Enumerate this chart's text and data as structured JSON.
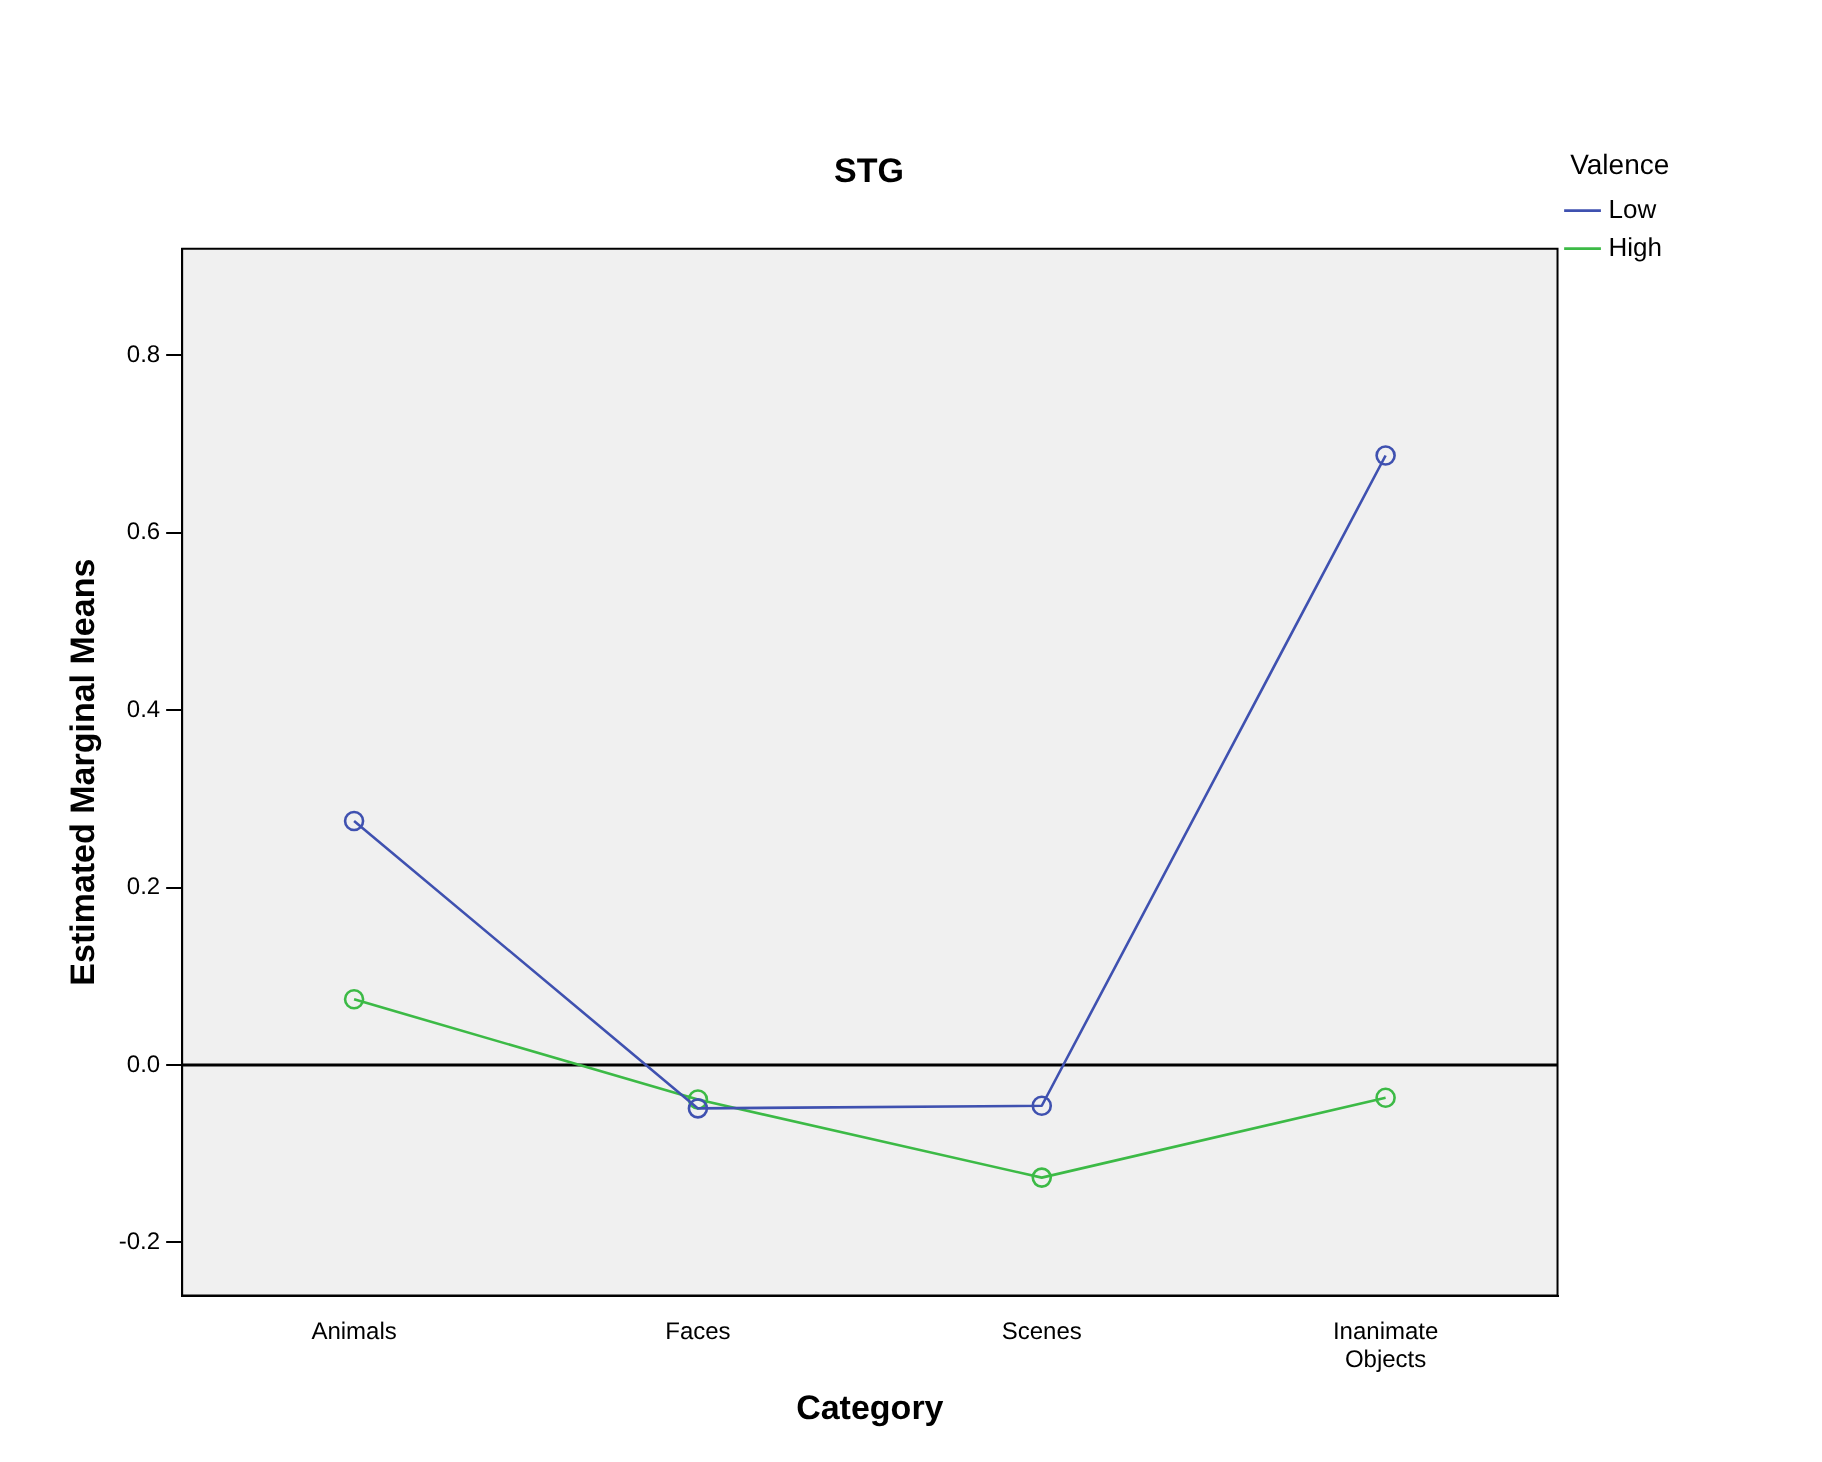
{
  "chart_data": {
    "type": "line",
    "title": "STG",
    "xlabel": "Category",
    "ylabel": "Estimated Marginal Means",
    "legend_title": "Valence",
    "categories": [
      "Animals",
      "Faces",
      "Scenes",
      "Inanimate Objects"
    ],
    "series": [
      {
        "name": "Low",
        "color": "#3f51b0",
        "values": [
          0.275,
          -0.049,
          -0.046,
          0.687
        ]
      },
      {
        "name": "High",
        "color": "#3cba46",
        "values": [
          0.074,
          -0.039,
          -0.127,
          -0.037
        ]
      }
    ],
    "ylim": [
      -0.26,
      0.92
    ],
    "yticks": [
      {
        "value": -0.2,
        "label": "-0.2"
      },
      {
        "value": 0,
        "label": "0.0"
      },
      {
        "value": 0.2,
        "label": "0.2"
      },
      {
        "value": 0.4,
        "label": "0.4"
      },
      {
        "value": 0.6,
        "label": "0.6"
      },
      {
        "value": 0.8,
        "label": "0.8"
      }
    ],
    "ref_lines": [
      {
        "axis": "y",
        "value": 0,
        "color": "#000000"
      }
    ],
    "grid": false,
    "legend": "top right",
    "marker": "circle",
    "line_style": "solid"
  }
}
